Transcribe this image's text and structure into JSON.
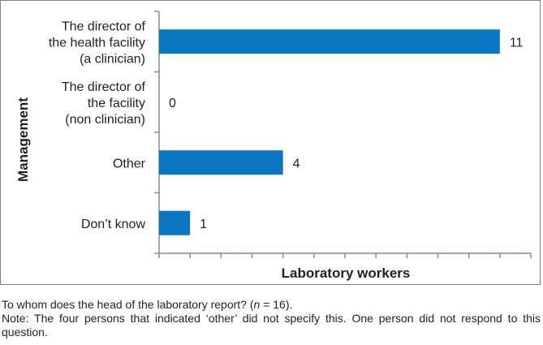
{
  "chart_data": {
    "type": "bar",
    "orientation": "horizontal",
    "categories": [
      [
        "The director of",
        "the health facility",
        "(a clinician)"
      ],
      [
        "The director of",
        "the facility",
        "(non clinician)"
      ],
      [
        "Other"
      ],
      [
        "Don’t know"
      ]
    ],
    "values": [
      11,
      0,
      4,
      1
    ],
    "xlabel": "Laboratory workers",
    "ylabel": "Management",
    "xlim": [
      0,
      12
    ],
    "x_tick_step": 1,
    "grid": false,
    "bar_color": "#0b77c2"
  },
  "caption": {
    "question_pre": "To whom does the head of the laboratory report? (",
    "question_n": "n",
    "question_post": " = 16).",
    "note": "Note: The four persons that indicated ‘other’ did not specify this. One person did not respond to this question."
  }
}
